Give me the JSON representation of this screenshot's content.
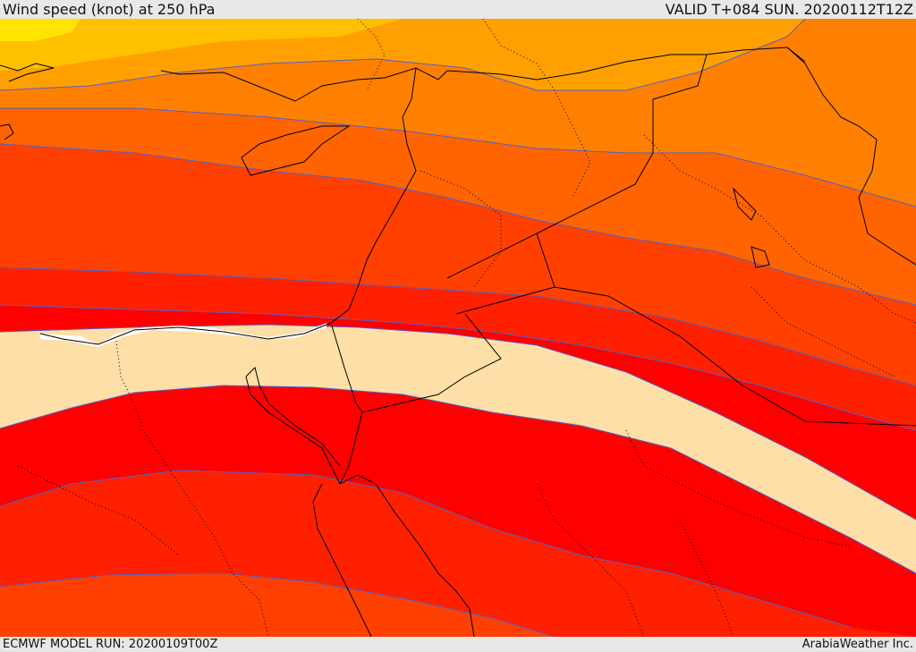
{
  "header": {
    "title": "Wind speed (knot) at 250 hPa",
    "valid_time": "VALID T+084 SUN. 20200112T12Z"
  },
  "footer": {
    "model_run": "ECMWF MODEL RUN: 20200109T00Z",
    "credit": "ArabiaWeather Inc."
  },
  "colors": {
    "yellow": "#ffe400",
    "gold": "#ffc000",
    "orange_light": "#ffa000",
    "orange": "#ff8000",
    "orange_dark": "#ff6400",
    "red_orange": "#ff4000",
    "red_light": "#ff2000",
    "red": "#ff0000",
    "jet_core": "#ffdfa8",
    "contour": "#5560c8",
    "coast": "#000000",
    "land": "#ffffff"
  }
}
